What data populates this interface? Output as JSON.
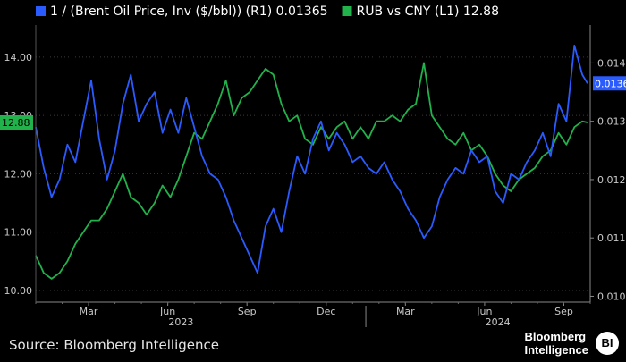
{
  "chart_data": {
    "type": "line",
    "legend": {
      "placement": "top-left",
      "items": [
        {
          "label": "1 / (Brent Oil Price, Inv ($/bbl)) (R1) 0.01365",
          "color": "#2a5bff"
        },
        {
          "label": "RUB vs CNY (L1) 12.88",
          "color": "#21b24b"
        }
      ]
    },
    "x_ticks": [
      "Mar",
      "Jun",
      "Sep",
      "Dec",
      "Mar",
      "Jun",
      "Sep"
    ],
    "x_tick_months": [
      2,
      5,
      8,
      11,
      14,
      17,
      20
    ],
    "x_year_labels": [
      {
        "label": "2023",
        "month": 5.5
      },
      {
        "label": "2024",
        "month": 17.5
      }
    ],
    "x_range_months": [
      0,
      21
    ],
    "left_axis": {
      "ticks": [
        "10.00",
        "11.00",
        "12.00",
        "13.00",
        "14.00"
      ],
      "range": [
        9.8,
        14.55
      ]
    },
    "right_axis": {
      "ticks": [
        "0.010",
        "0.011",
        "0.012",
        "0.013",
        "0.014"
      ],
      "range": [
        0.0099,
        0.01465
      ]
    },
    "current_labels": {
      "left": "12.88",
      "right": "0.0136"
    },
    "series": [
      {
        "name": "RUB vs CNY",
        "axis": "left",
        "color": "#21b24b",
        "x": [
          0,
          0.3,
          0.6,
          0.9,
          1.2,
          1.5,
          1.8,
          2.1,
          2.4,
          2.7,
          3.0,
          3.3,
          3.6,
          3.9,
          4.2,
          4.5,
          4.8,
          5.1,
          5.4,
          5.7,
          6.0,
          6.3,
          6.6,
          6.9,
          7.2,
          7.5,
          7.8,
          8.1,
          8.4,
          8.7,
          9.0,
          9.3,
          9.6,
          9.9,
          10.2,
          10.5,
          10.8,
          11.1,
          11.4,
          11.7,
          12.0,
          12.3,
          12.6,
          12.9,
          13.2,
          13.5,
          13.8,
          14.1,
          14.4,
          14.7,
          15.0,
          15.3,
          15.6,
          15.9,
          16.2,
          16.5,
          16.8,
          17.1,
          17.4,
          17.7,
          18.0,
          18.3,
          18.6,
          18.9,
          19.2,
          19.5,
          19.8,
          20.1,
          20.4,
          20.7,
          20.9
        ],
        "values": [
          10.6,
          10.3,
          10.2,
          10.3,
          10.5,
          10.8,
          11.0,
          11.2,
          11.2,
          11.4,
          11.7,
          12.0,
          11.6,
          11.5,
          11.3,
          11.5,
          11.8,
          11.6,
          11.9,
          12.3,
          12.7,
          12.6,
          12.9,
          13.2,
          13.6,
          13.0,
          13.3,
          13.4,
          13.6,
          13.8,
          13.7,
          13.2,
          12.9,
          13.0,
          12.6,
          12.5,
          12.8,
          12.6,
          12.8,
          12.9,
          12.6,
          12.8,
          12.6,
          12.9,
          12.9,
          13.0,
          12.9,
          13.1,
          13.2,
          13.9,
          13.0,
          12.8,
          12.6,
          12.5,
          12.7,
          12.4,
          12.5,
          12.3,
          12.0,
          11.8,
          11.7,
          11.9,
          12.0,
          12.1,
          12.3,
          12.4,
          12.7,
          12.5,
          12.8,
          12.9,
          12.88
        ]
      },
      {
        "name": "1 / (Brent Oil Price, Inv ($/bbl))",
        "axis": "right",
        "color": "#2a5bff",
        "x": [
          0,
          0.3,
          0.6,
          0.9,
          1.2,
          1.5,
          1.8,
          2.1,
          2.4,
          2.7,
          3.0,
          3.3,
          3.6,
          3.9,
          4.2,
          4.5,
          4.8,
          5.1,
          5.4,
          5.7,
          6.0,
          6.3,
          6.6,
          6.9,
          7.2,
          7.5,
          7.8,
          8.1,
          8.4,
          8.7,
          9.0,
          9.3,
          9.6,
          9.9,
          10.2,
          10.5,
          10.8,
          11.1,
          11.4,
          11.7,
          12.0,
          12.3,
          12.6,
          12.9,
          13.2,
          13.5,
          13.8,
          14.1,
          14.4,
          14.7,
          15.0,
          15.3,
          15.6,
          15.9,
          16.2,
          16.5,
          16.8,
          17.1,
          17.4,
          17.7,
          18.0,
          18.3,
          18.6,
          18.9,
          19.2,
          19.5,
          19.8,
          20.1,
          20.4,
          20.7,
          20.9
        ],
        "values": [
          0.0129,
          0.0122,
          0.0117,
          0.012,
          0.0126,
          0.0123,
          0.013,
          0.0137,
          0.0127,
          0.012,
          0.0125,
          0.0133,
          0.0138,
          0.013,
          0.0133,
          0.0135,
          0.0128,
          0.0132,
          0.0128,
          0.0134,
          0.0129,
          0.0124,
          0.0121,
          0.012,
          0.0117,
          0.0113,
          0.011,
          0.0107,
          0.0104,
          0.0112,
          0.0115,
          0.0111,
          0.0118,
          0.0124,
          0.0121,
          0.0127,
          0.013,
          0.0125,
          0.0128,
          0.0126,
          0.0123,
          0.0124,
          0.0122,
          0.0121,
          0.0123,
          0.012,
          0.0118,
          0.0115,
          0.0113,
          0.011,
          0.0112,
          0.0117,
          0.012,
          0.0122,
          0.0121,
          0.0125,
          0.0123,
          0.0124,
          0.0118,
          0.0116,
          0.0121,
          0.012,
          0.0123,
          0.0125,
          0.0128,
          0.0124,
          0.0133,
          0.013,
          0.0143,
          0.0138,
          0.01365
        ]
      }
    ]
  },
  "footer": {
    "source": "Source: Bloomberg Intelligence",
    "brand_line1": "Bloomberg",
    "brand_line2": "Intelligence",
    "brand_badge": "BI"
  }
}
